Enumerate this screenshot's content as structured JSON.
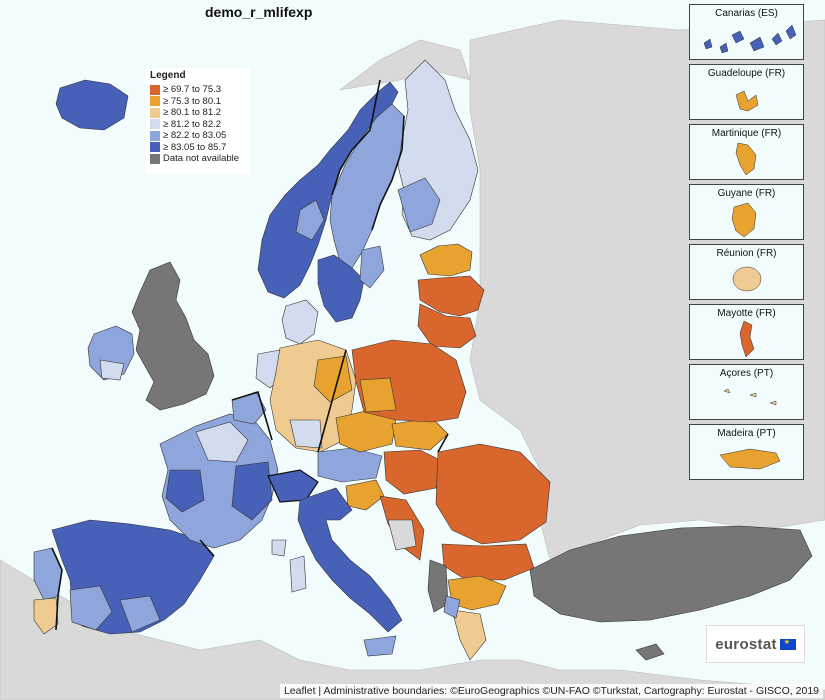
{
  "title": "demo_r_mlifexp",
  "legend": {
    "title": "Legend",
    "items": [
      {
        "label": "≥ 69.7 to 75.3",
        "color": "#d9662c"
      },
      {
        "label": "≥ 75.3 to 80.1",
        "color": "#e8a22f"
      },
      {
        "label": "≥ 80.1 to 81.2",
        "color": "#f0cb91"
      },
      {
        "label": "≥ 81.2 to 82.2",
        "color": "#d3dcee"
      },
      {
        "label": "≥ 82.2 to 83.05",
        "color": "#8ea6db"
      },
      {
        "label": "≥ 83.05 to 85.7",
        "color": "#4760b8"
      },
      {
        "label": "Data not available",
        "color": "#767676"
      }
    ]
  },
  "insets": [
    {
      "label": "Canarias (ES)",
      "color": "#4760b8"
    },
    {
      "label": "Guadeloupe (FR)",
      "color": "#e8a22f"
    },
    {
      "label": "Martinique (FR)",
      "color": "#e8a22f"
    },
    {
      "label": "Guyane (FR)",
      "color": "#e8a22f"
    },
    {
      "label": "Réunion (FR)",
      "color": "#f0cb91"
    },
    {
      "label": "Mayotte (FR)",
      "color": "#d9662c"
    },
    {
      "label": "Açores (PT)",
      "color": "#f0cb91"
    },
    {
      "label": "Madeira (PT)",
      "color": "#e8a22f"
    }
  ],
  "logo": "eurostat",
  "attribution": "Leaflet | Administrative boundaries: ©EuroGeographics ©UN-FAO ©Turkstat, Cartography: Eurostat - GISCO, 2019",
  "colors": {
    "sea": "#f2fcfd",
    "land_outside": "#d9d9d9",
    "border": "#333333"
  }
}
